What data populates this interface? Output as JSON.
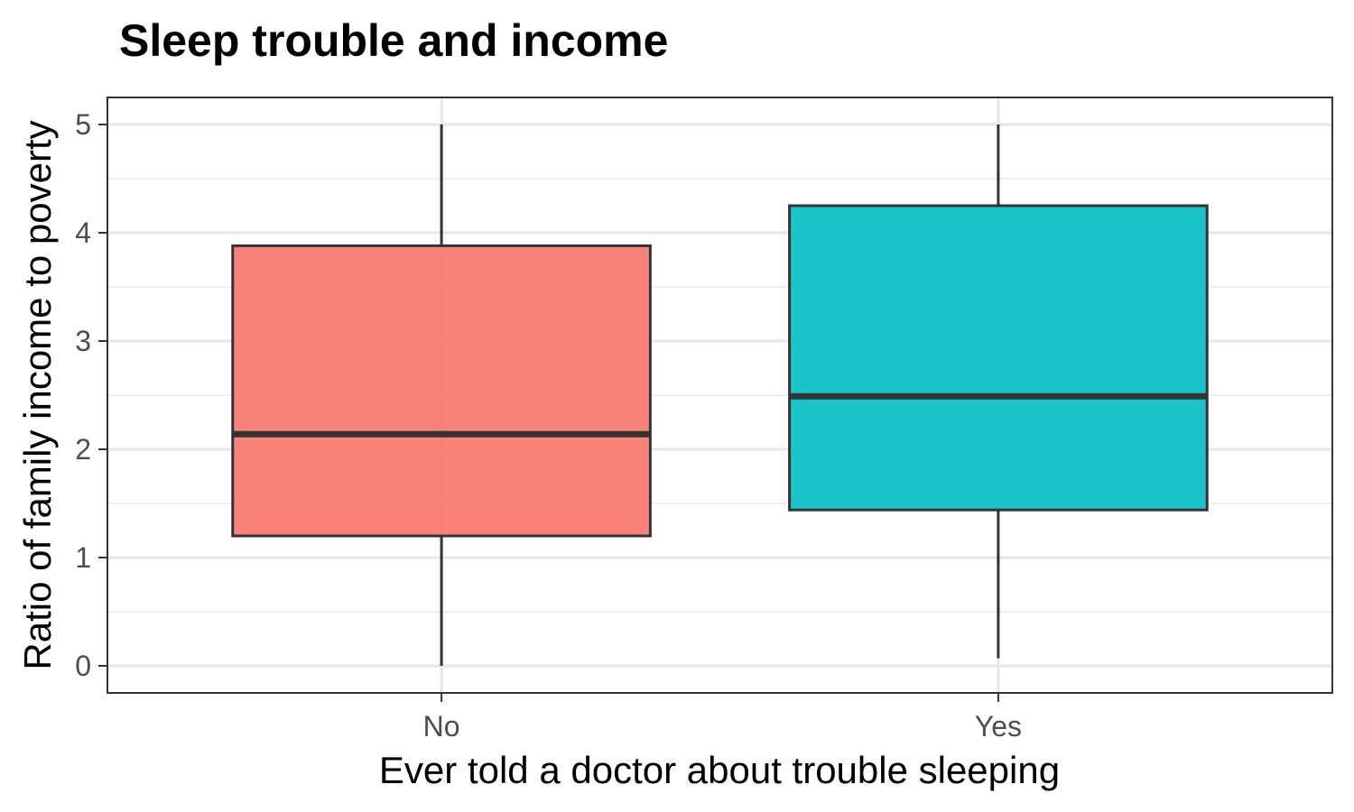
{
  "chart_data": {
    "type": "boxplot",
    "title": "Sleep trouble and income",
    "xlabel": "Ever told a doctor about trouble sleeping",
    "ylabel": "Ratio of family income to poverty",
    "categories": [
      "No",
      "Yes"
    ],
    "ylim": [
      -0.25,
      5.25
    ],
    "yticks": [
      0,
      1,
      2,
      3,
      4,
      5
    ],
    "grid": true,
    "legend": "none",
    "boxes": [
      {
        "category": "No",
        "min": 0.0,
        "q1": 1.2,
        "median": 2.14,
        "q3": 3.88,
        "max": 5.0,
        "color": "#F8766D"
      },
      {
        "category": "Yes",
        "min": 0.07,
        "q1": 1.44,
        "median": 2.49,
        "q3": 4.25,
        "max": 5.0,
        "color": "#00BFC4"
      }
    ]
  }
}
